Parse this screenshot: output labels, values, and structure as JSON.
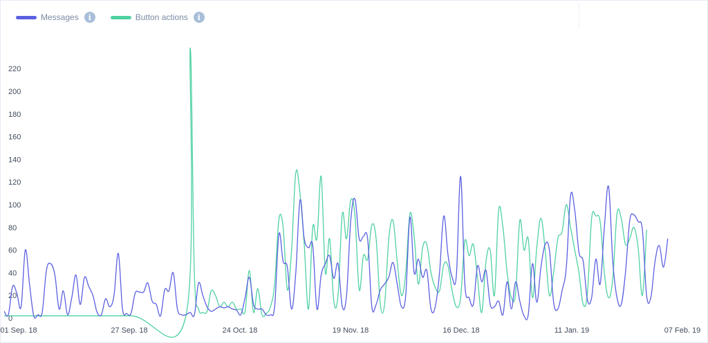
{
  "legend": {
    "items": [
      {
        "label": "Messages",
        "color": "#5b5fe0",
        "icon": "info-icon"
      },
      {
        "label": "Button actions",
        "color": "#4fd1a1",
        "icon": "info-icon"
      }
    ]
  },
  "chart_data": {
    "type": "line",
    "title": "",
    "xlabel": "",
    "ylabel": "",
    "ylim": [
      0,
      240
    ],
    "yticks": [
      0,
      20,
      40,
      60,
      80,
      100,
      120,
      140,
      160,
      180,
      200,
      220
    ],
    "x_tick_labels": [
      "01 Sep. 18",
      "27 Sep. 18",
      "24 Oct. 18",
      "19 Nov. 18",
      "16 Dec. 18",
      "11 Jan. 19",
      "07 Feb. 19"
    ],
    "x_range": [
      "2018-09-01",
      "2019-02-07"
    ],
    "grid": false,
    "legend_position": "top-left",
    "series": [
      {
        "name": "Messages",
        "color": "#5b5fe0",
        "points": [
          [
            "2018-09-01",
            6
          ],
          [
            "2018-09-02",
            3
          ],
          [
            "2018-09-03",
            28
          ],
          [
            "2018-09-04",
            22
          ],
          [
            "2018-09-05",
            10
          ],
          [
            "2018-09-06",
            60
          ],
          [
            "2018-09-07",
            30
          ],
          [
            "2018-09-08",
            2
          ],
          [
            "2018-09-09",
            3
          ],
          [
            "2018-09-10",
            5
          ],
          [
            "2018-09-11",
            42
          ],
          [
            "2018-09-12",
            48
          ],
          [
            "2018-09-13",
            38
          ],
          [
            "2018-09-14",
            8
          ],
          [
            "2018-09-15",
            24
          ],
          [
            "2018-09-16",
            3
          ],
          [
            "2018-09-17",
            18
          ],
          [
            "2018-09-18",
            38
          ],
          [
            "2018-09-19",
            12
          ],
          [
            "2018-09-20",
            36
          ],
          [
            "2018-09-21",
            28
          ],
          [
            "2018-09-22",
            20
          ],
          [
            "2018-09-23",
            5
          ],
          [
            "2018-09-24",
            3
          ],
          [
            "2018-09-25",
            17
          ],
          [
            "2018-09-26",
            10
          ],
          [
            "2018-09-27",
            20
          ],
          [
            "2018-09-28",
            57
          ],
          [
            "2018-09-29",
            8
          ],
          [
            "2018-09-30",
            4
          ],
          [
            "2018-10-01",
            4
          ],
          [
            "2018-10-02",
            22
          ],
          [
            "2018-10-03",
            23
          ],
          [
            "2018-10-04",
            23
          ],
          [
            "2018-10-05",
            31
          ],
          [
            "2018-10-06",
            15
          ],
          [
            "2018-10-07",
            12
          ],
          [
            "2018-10-08",
            2
          ],
          [
            "2018-10-09",
            25
          ],
          [
            "2018-10-10",
            24
          ],
          [
            "2018-10-11",
            40
          ],
          [
            "2018-10-12",
            8
          ],
          [
            "2018-10-13",
            3
          ],
          [
            "2018-10-14",
            3
          ],
          [
            "2018-10-15",
            5
          ],
          [
            "2018-10-16",
            3
          ],
          [
            "2018-10-17",
            31
          ],
          [
            "2018-10-18",
            20
          ],
          [
            "2018-10-19",
            10
          ],
          [
            "2018-10-20",
            6
          ],
          [
            "2018-10-21",
            8
          ],
          [
            "2018-10-22",
            10
          ],
          [
            "2018-10-23",
            9
          ],
          [
            "2018-10-24",
            10
          ],
          [
            "2018-10-25",
            8
          ],
          [
            "2018-10-26",
            7
          ],
          [
            "2018-10-27",
            3
          ],
          [
            "2018-10-28",
            18
          ],
          [
            "2018-10-29",
            36
          ],
          [
            "2018-10-30",
            12
          ],
          [
            "2018-10-31",
            8
          ],
          [
            "2018-11-01",
            8
          ],
          [
            "2018-11-02",
            3
          ],
          [
            "2018-11-03",
            3
          ],
          [
            "2018-11-04",
            10
          ],
          [
            "2018-11-05",
            74
          ],
          [
            "2018-11-06",
            50
          ],
          [
            "2018-11-07",
            45
          ],
          [
            "2018-11-08",
            8
          ],
          [
            "2018-11-09",
            40
          ],
          [
            "2018-11-10",
            104
          ],
          [
            "2018-11-11",
            70
          ],
          [
            "2018-11-12",
            62
          ],
          [
            "2018-11-13",
            64
          ],
          [
            "2018-11-14",
            8
          ],
          [
            "2018-11-15",
            38
          ],
          [
            "2018-11-16",
            48
          ],
          [
            "2018-11-17",
            55
          ],
          [
            "2018-11-18",
            35
          ],
          [
            "2018-11-19",
            48
          ],
          [
            "2018-11-20",
            10
          ],
          [
            "2018-11-21",
            20
          ],
          [
            "2018-11-22",
            86
          ],
          [
            "2018-11-23",
            105
          ],
          [
            "2018-11-24",
            70
          ],
          [
            "2018-11-25",
            72
          ],
          [
            "2018-11-26",
            70
          ],
          [
            "2018-11-27",
            10
          ],
          [
            "2018-11-28",
            12
          ],
          [
            "2018-11-29",
            25
          ],
          [
            "2018-11-30",
            30
          ],
          [
            "2018-12-01",
            36
          ],
          [
            "2018-12-02",
            49
          ],
          [
            "2018-12-03",
            30
          ],
          [
            "2018-12-04",
            10
          ],
          [
            "2018-12-05",
            20
          ],
          [
            "2018-12-06",
            89
          ],
          [
            "2018-12-07",
            40
          ],
          [
            "2018-12-08",
            52
          ],
          [
            "2018-12-09",
            36
          ],
          [
            "2018-12-10",
            42
          ],
          [
            "2018-12-11",
            8
          ],
          [
            "2018-12-12",
            10
          ],
          [
            "2018-12-13",
            40
          ],
          [
            "2018-12-14",
            90
          ],
          [
            "2018-12-15",
            56
          ],
          [
            "2018-12-16",
            36
          ],
          [
            "2018-12-17",
            38
          ],
          [
            "2018-12-18",
            125
          ],
          [
            "2018-12-19",
            30
          ],
          [
            "2018-12-20",
            18
          ],
          [
            "2018-12-21",
            12
          ],
          [
            "2018-12-22",
            46
          ],
          [
            "2018-12-23",
            32
          ],
          [
            "2018-12-24",
            42
          ],
          [
            "2018-12-25",
            12
          ],
          [
            "2018-12-26",
            10
          ],
          [
            "2018-12-27",
            15
          ],
          [
            "2018-12-28",
            3
          ],
          [
            "2018-12-29",
            32
          ],
          [
            "2018-12-30",
            8
          ],
          [
            "2018-12-31",
            32
          ],
          [
            "2019-01-01",
            15
          ],
          [
            "2019-01-02",
            2
          ],
          [
            "2019-01-03",
            3
          ],
          [
            "2019-01-04",
            48
          ],
          [
            "2019-01-05",
            14
          ],
          [
            "2019-01-06",
            45
          ],
          [
            "2019-01-07",
            65
          ],
          [
            "2019-01-08",
            60
          ],
          [
            "2019-01-09",
            14
          ],
          [
            "2019-01-10",
            8
          ],
          [
            "2019-01-11",
            24
          ],
          [
            "2019-01-12",
            45
          ],
          [
            "2019-01-13",
            108
          ],
          [
            "2019-01-14",
            95
          ],
          [
            "2019-01-15",
            58
          ],
          [
            "2019-01-16",
            50
          ],
          [
            "2019-01-17",
            16
          ],
          [
            "2019-01-18",
            18
          ],
          [
            "2019-01-19",
            52
          ],
          [
            "2019-01-20",
            30
          ],
          [
            "2019-01-21",
            80
          ],
          [
            "2019-01-22",
            116
          ],
          [
            "2019-01-23",
            50
          ],
          [
            "2019-01-24",
            18
          ],
          [
            "2019-01-25",
            12
          ],
          [
            "2019-01-26",
            40
          ],
          [
            "2019-01-27",
            86
          ],
          [
            "2019-01-28",
            91
          ],
          [
            "2019-01-29",
            85
          ],
          [
            "2019-01-30",
            78
          ],
          [
            "2019-01-31",
            20
          ],
          [
            "2019-02-01",
            18
          ],
          [
            "2019-02-02",
            50
          ],
          [
            "2019-02-03",
            64
          ],
          [
            "2019-02-04",
            45
          ],
          [
            "2019-02-05",
            70
          ]
        ]
      },
      {
        "name": "Button actions",
        "color": "#4fd1a1",
        "points": [
          [
            "2018-09-01",
            2
          ],
          [
            "2018-09-15",
            2
          ],
          [
            "2018-10-01",
            2
          ],
          [
            "2018-10-14",
            2
          ],
          [
            "2018-10-15",
            238
          ],
          [
            "2018-10-16",
            40
          ],
          [
            "2018-10-17",
            8
          ],
          [
            "2018-10-18",
            5
          ],
          [
            "2018-10-19",
            6
          ],
          [
            "2018-10-20",
            24
          ],
          [
            "2018-10-21",
            20
          ],
          [
            "2018-10-22",
            10
          ],
          [
            "2018-10-23",
            14
          ],
          [
            "2018-10-24",
            10
          ],
          [
            "2018-10-25",
            14
          ],
          [
            "2018-10-26",
            8
          ],
          [
            "2018-10-27",
            8
          ],
          [
            "2018-10-28",
            6
          ],
          [
            "2018-10-29",
            42
          ],
          [
            "2018-10-30",
            5
          ],
          [
            "2018-10-31",
            26
          ],
          [
            "2018-11-01",
            3
          ],
          [
            "2018-11-02",
            4
          ],
          [
            "2018-11-03",
            10
          ],
          [
            "2018-11-04",
            30
          ],
          [
            "2018-11-05",
            87
          ],
          [
            "2018-11-06",
            80
          ],
          [
            "2018-11-07",
            25
          ],
          [
            "2018-11-08",
            60
          ],
          [
            "2018-11-09",
            128
          ],
          [
            "2018-11-10",
            110
          ],
          [
            "2018-11-11",
            65
          ],
          [
            "2018-11-12",
            8
          ],
          [
            "2018-11-13",
            80
          ],
          [
            "2018-11-14",
            70
          ],
          [
            "2018-11-15",
            125
          ],
          [
            "2018-11-16",
            40
          ],
          [
            "2018-11-17",
            70
          ],
          [
            "2018-11-18",
            15
          ],
          [
            "2018-11-19",
            20
          ],
          [
            "2018-11-20",
            92
          ],
          [
            "2018-11-21",
            70
          ],
          [
            "2018-11-22",
            104
          ],
          [
            "2018-11-23",
            90
          ],
          [
            "2018-11-24",
            25
          ],
          [
            "2018-11-25",
            55
          ],
          [
            "2018-11-26",
            52
          ],
          [
            "2018-11-27",
            82
          ],
          [
            "2018-11-28",
            70
          ],
          [
            "2018-11-29",
            12
          ],
          [
            "2018-11-30",
            12
          ],
          [
            "2018-12-01",
            70
          ],
          [
            "2018-12-02",
            86
          ],
          [
            "2018-12-03",
            50
          ],
          [
            "2018-12-04",
            20
          ],
          [
            "2018-12-05",
            40
          ],
          [
            "2018-12-06",
            92
          ],
          [
            "2018-12-07",
            72
          ],
          [
            "2018-12-08",
            30
          ],
          [
            "2018-12-09",
            62
          ],
          [
            "2018-12-10",
            65
          ],
          [
            "2018-12-11",
            40
          ],
          [
            "2018-12-12",
            27
          ],
          [
            "2018-12-13",
            24
          ],
          [
            "2018-12-14",
            47
          ],
          [
            "2018-12-15",
            46
          ],
          [
            "2018-12-16",
            24
          ],
          [
            "2018-12-17",
            10
          ],
          [
            "2018-12-18",
            18
          ],
          [
            "2018-12-19",
            68
          ],
          [
            "2018-12-20",
            55
          ],
          [
            "2018-12-21",
            65
          ],
          [
            "2018-12-22",
            35
          ],
          [
            "2018-12-23",
            5
          ],
          [
            "2018-12-24",
            50
          ],
          [
            "2018-12-25",
            60
          ],
          [
            "2018-12-26",
            20
          ],
          [
            "2018-12-27",
            95
          ],
          [
            "2018-12-28",
            80
          ],
          [
            "2018-12-29",
            40
          ],
          [
            "2018-12-30",
            18
          ],
          [
            "2018-12-31",
            22
          ],
          [
            "2019-01-01",
            86
          ],
          [
            "2019-01-02",
            60
          ],
          [
            "2019-01-03",
            70
          ],
          [
            "2019-01-04",
            18
          ],
          [
            "2019-01-05",
            62
          ],
          [
            "2019-01-06",
            88
          ],
          [
            "2019-01-07",
            60
          ],
          [
            "2019-01-08",
            20
          ],
          [
            "2019-01-09",
            40
          ],
          [
            "2019-01-10",
            70
          ],
          [
            "2019-01-11",
            76
          ],
          [
            "2019-01-12",
            100
          ],
          [
            "2019-01-13",
            80
          ],
          [
            "2019-01-14",
            60
          ],
          [
            "2019-01-15",
            40
          ],
          [
            "2019-01-16",
            12
          ],
          [
            "2019-01-17",
            22
          ],
          [
            "2019-01-18",
            88
          ],
          [
            "2019-01-19",
            90
          ],
          [
            "2019-01-20",
            85
          ],
          [
            "2019-01-21",
            40
          ],
          [
            "2019-01-22",
            18
          ],
          [
            "2019-01-23",
            35
          ],
          [
            "2019-01-24",
            92
          ],
          [
            "2019-01-25",
            88
          ],
          [
            "2019-01-26",
            65
          ],
          [
            "2019-01-27",
            70
          ],
          [
            "2019-01-28",
            80
          ],
          [
            "2019-01-29",
            62
          ],
          [
            "2019-01-30",
            20
          ],
          [
            "2019-01-31",
            78
          ]
        ]
      }
    ]
  }
}
